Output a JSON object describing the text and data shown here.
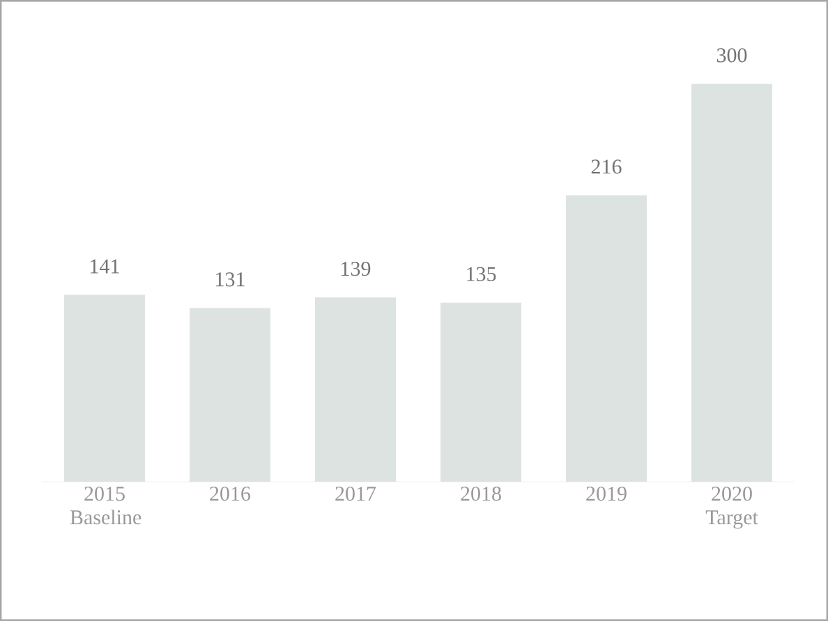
{
  "chart_data": {
    "type": "bar",
    "categories": [
      "2015 Baseline",
      "2016",
      "2017",
      "2018",
      "2019",
      "2020 Target"
    ],
    "values": [
      141,
      131,
      139,
      135,
      216,
      300
    ],
    "color": "#dde3e1",
    "data_labels": true
  }
}
